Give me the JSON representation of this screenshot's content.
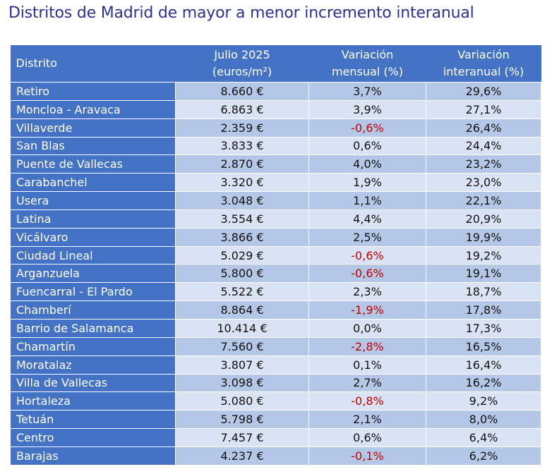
{
  "title": "Distritos de Madrid de mayor a menor incremento interanual",
  "colors": {
    "title": "#2e3192",
    "header_bg": "#4472c4",
    "name_cell_bg": "#4472c4",
    "row_odd_bg": "#b4c7e7",
    "row_even_bg": "#dae3f3",
    "negative_text": "#c00000"
  },
  "table": {
    "headers": {
      "district": "Distrito",
      "price_line1": "Julio 2025",
      "price_line2": "(euros/m²)",
      "monthly_line1": "Variación",
      "monthly_line2": "mensual (%)",
      "annual_line1": "Variación",
      "annual_line2": "interanual (%)"
    },
    "rows": [
      {
        "district": "Retiro",
        "price": "8.660 €",
        "monthly": "3,7%",
        "annual": "29,6%"
      },
      {
        "district": "Moncloa - Aravaca",
        "price": "6.863 €",
        "monthly": "3,9%",
        "annual": "27,1%"
      },
      {
        "district": "Villaverde",
        "price": "2.359 €",
        "monthly": "-0,6%",
        "annual": "26,4%"
      },
      {
        "district": "San Blas",
        "price": "3.833 €",
        "monthly": "0,6%",
        "annual": "24,4%"
      },
      {
        "district": "Puente de Vallecas",
        "price": "2.870 €",
        "monthly": "4,0%",
        "annual": "23,2%"
      },
      {
        "district": "Carabanchel",
        "price": "3.320 €",
        "monthly": "1,9%",
        "annual": "23,0%"
      },
      {
        "district": "Usera",
        "price": "3.048 €",
        "monthly": "1,1%",
        "annual": "22,1%"
      },
      {
        "district": "Latina",
        "price": "3.554 €",
        "monthly": "4,4%",
        "annual": "20,9%"
      },
      {
        "district": "Vicálvaro",
        "price": "3.866 €",
        "monthly": "2,5%",
        "annual": "19,9%"
      },
      {
        "district": "Ciudad Lineal",
        "price": "5.029 €",
        "monthly": "-0,6%",
        "annual": "19,2%"
      },
      {
        "district": "Arganzuela",
        "price": "5.800 €",
        "monthly": "-0,6%",
        "annual": "19,1%"
      },
      {
        "district": "Fuencarral - El Pardo",
        "price": "5.522 €",
        "monthly": "2,3%",
        "annual": "18,7%"
      },
      {
        "district": "Chamberí",
        "price": "8.864 €",
        "monthly": "-1,9%",
        "annual": "17,8%"
      },
      {
        "district": "Barrio de Salamanca",
        "price": "10.414 €",
        "monthly": "0,0%",
        "annual": "17,3%"
      },
      {
        "district": "Chamartín",
        "price": "7.560 €",
        "monthly": "-2,8%",
        "annual": "16,5%"
      },
      {
        "district": "Moratalaz",
        "price": "3.807 €",
        "monthly": "0,1%",
        "annual": "16,4%"
      },
      {
        "district": "Villa de Vallecas",
        "price": "3.098 €",
        "monthly": "2,7%",
        "annual": "16,2%"
      },
      {
        "district": "Hortaleza",
        "price": "5.080 €",
        "monthly": "-0,8%",
        "annual": "9,2%"
      },
      {
        "district": "Tetuán",
        "price": "5.798 €",
        "monthly": "2,1%",
        "annual": "8,0%"
      },
      {
        "district": "Centro",
        "price": "7.457 €",
        "monthly": "0,6%",
        "annual": "6,4%"
      },
      {
        "district": "Barajas",
        "price": "4.237 €",
        "monthly": "-0,1%",
        "annual": "6,2%"
      }
    ]
  }
}
